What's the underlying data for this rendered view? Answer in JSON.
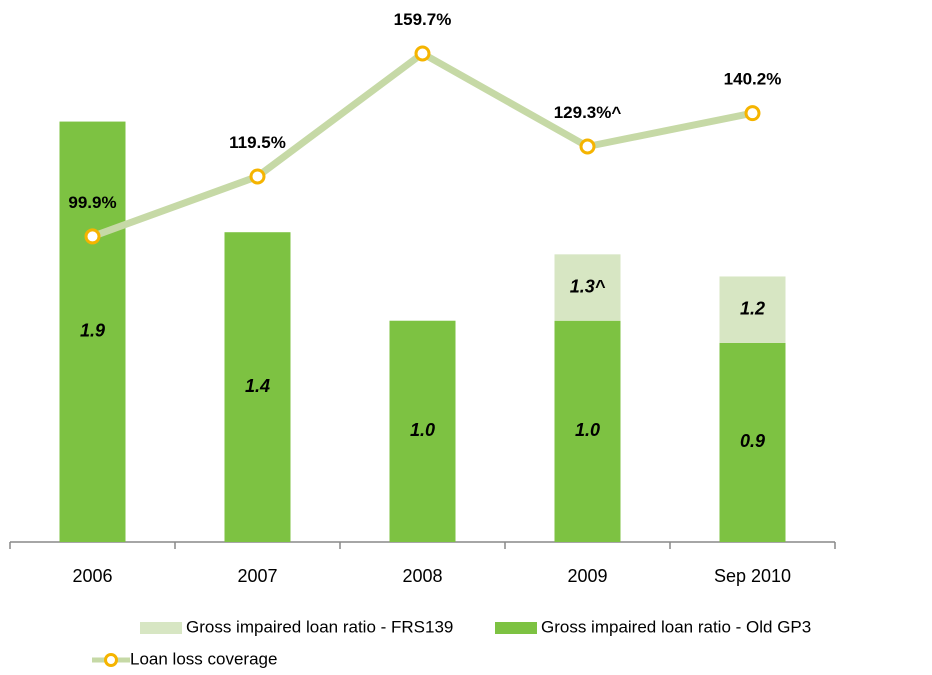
{
  "chart_data": {
    "type": "bar_line",
    "categories": [
      "2006",
      "2007",
      "2008",
      "2009",
      "Sep 2010"
    ],
    "ylim": [
      0,
      2.35
    ],
    "y2lim": [
      0,
      170
    ],
    "series": [
      {
        "name": "Gross impaired loan ratio - Old GP3",
        "type": "bar",
        "color": "#7dc242",
        "values": [
          1.9,
          1.4,
          1.0,
          1.0,
          0.9
        ],
        "value_labels": [
          "1.9",
          "1.4",
          "1.0",
          "1.0",
          "0.9"
        ]
      },
      {
        "name": "Gross impaired loan ratio - FRS139",
        "type": "bar",
        "color": "#d7e6c3",
        "values": [
          null,
          null,
          null,
          0.3,
          0.3
        ],
        "totals": [
          null,
          null,
          null,
          1.3,
          1.2
        ],
        "total_labels": [
          null,
          null,
          null,
          "1.3^",
          "1.2"
        ]
      },
      {
        "name": "Loan loss coverage",
        "type": "line",
        "axis": "y2",
        "color": "#c6d9a6",
        "marker_color": "#f5b400",
        "values": [
          99.9,
          119.5,
          159.7,
          129.3,
          140.2
        ],
        "value_labels": [
          "99.9%",
          "119.5%",
          "159.7%",
          "129.3%^",
          "140.2%"
        ]
      }
    ]
  }
}
